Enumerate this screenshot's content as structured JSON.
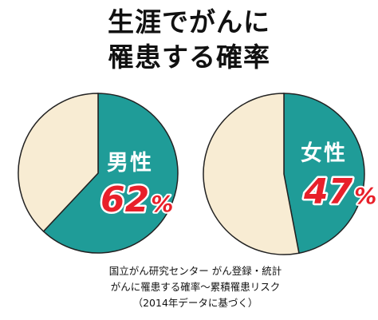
{
  "title": {
    "line1": "生涯でがんに",
    "line2": "罹患する確率"
  },
  "colors": {
    "affected": "#1f9c98",
    "not_affected": "#f8ecd3",
    "outline": "#222222",
    "percent_text": "#e8202a",
    "gender_text": "#ffffff"
  },
  "chart_data": [
    {
      "type": "pie",
      "label": "男性",
      "values": [
        62,
        38
      ],
      "value_label": "62",
      "unit": "%",
      "slice_colors": [
        "#1f9c98",
        "#f8ecd3"
      ]
    },
    {
      "type": "pie",
      "label": "女性",
      "values": [
        47,
        53
      ],
      "value_label": "47",
      "unit": "%",
      "slice_colors": [
        "#1f9c98",
        "#f8ecd3"
      ]
    }
  ],
  "source": {
    "line1": "国立がん研究センター がん登録・統計",
    "line2": "がんに罹患する確率～累積罹患リスク",
    "line3": "（2014年データに基づく）"
  }
}
